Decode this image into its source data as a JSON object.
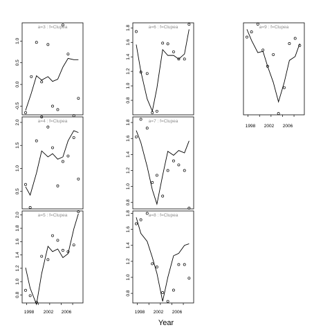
{
  "chart_data": {
    "type": "scatter",
    "xlabel": "Year",
    "x_ticks": [
      1998,
      2002,
      2006
    ],
    "panels": [
      {
        "title": "a=3 : f=Clupea",
        "x": [
          1998,
          1999,
          2000,
          2001,
          2002,
          2003,
          2004,
          2005,
          2006,
          2007
        ],
        "observed": [
          -0.65,
          0.18,
          0.97,
          0.06,
          0.92,
          -0.5,
          -0.58,
          1.37,
          0.7,
          -0.72,
          -0.32
        ],
        "observed_x": [
          1997.8,
          1998.8,
          1999.7,
          2000.6,
          2001.7,
          2002.5,
          2003.4,
          2004.3,
          2005.2,
          2006.2,
          2007.0
        ],
        "fitted": [
          -0.6,
          -0.2,
          0.2,
          0.1,
          0.18,
          0.07,
          0.12,
          0.4,
          0.6,
          0.57,
          0.57
        ],
        "fitted_x": [
          1997.8,
          1998.8,
          1999.7,
          2000.6,
          2001.7,
          2002.5,
          2003.4,
          2004.3,
          2005.2,
          2006.2,
          2007.0
        ],
        "ylim": [
          -0.7,
          1.42
        ],
        "yticks": [
          "-0.5",
          "0.0",
          "0.5",
          "1.0"
        ],
        "ytick_values": [
          -0.5,
          0.0,
          0.5,
          1.0
        ]
      },
      {
        "title": "a=4 : f=Clupea",
        "observed_x": [
          1997.8,
          1998.6,
          1999.7,
          2000.6,
          2001.7,
          2002.5,
          2003.4,
          2004.3,
          2005.2,
          2006.2,
          2007.0
        ],
        "observed": [
          0.65,
          0.15,
          1.6,
          2.12,
          1.9,
          1.45,
          0.62,
          1.15,
          1.27,
          1.67,
          0.77
        ],
        "fitted_x": [
          1997.8,
          1998.6,
          1999.7,
          2000.6,
          2001.7,
          2002.5,
          2003.4,
          2004.3,
          2005.2,
          2006.2,
          2007.0
        ],
        "fitted": [
          0.6,
          0.42,
          0.9,
          1.38,
          1.25,
          1.32,
          1.2,
          1.25,
          1.6,
          1.82,
          1.78
        ],
        "ylim": [
          0.12,
          2.12
        ],
        "yticks": [
          "0.5",
          "1.0",
          "1.5",
          "2.0"
        ],
        "ytick_values": [
          0.5,
          1.0,
          1.5,
          2.0
        ]
      },
      {
        "title": "a=5 : f=Clupea",
        "observed_x": [
          1997.8,
          1998.6,
          1999.7,
          2000.6,
          2001.7,
          2002.5,
          2003.4,
          2004.3,
          2005.2,
          2006.2,
          2007.0
        ],
        "observed": [
          0.87,
          0.79,
          0.69,
          1.38,
          1.33,
          1.69,
          1.62,
          1.47,
          1.45,
          1.55,
          2.05
        ],
        "fitted_x": [
          1997.8,
          1998.6,
          1999.7,
          2000.6,
          2001.7,
          2002.5,
          2003.4,
          2004.3,
          2005.2,
          2006.2,
          2007.0
        ],
        "fitted": [
          1.21,
          0.9,
          0.66,
          1.12,
          1.53,
          1.45,
          1.49,
          1.36,
          1.42,
          1.79,
          2.02
        ],
        "ylim": [
          0.68,
          2.06
        ],
        "yticks": [
          "0.8",
          "1.0",
          "1.2",
          "1.4",
          "1.6",
          "1.8",
          "2.0"
        ],
        "ytick_values": [
          0.8,
          1.0,
          1.2,
          1.4,
          1.6,
          1.8,
          2.0
        ]
      },
      {
        "title": "a=6 : f=Clupea",
        "observed_x": [
          1997.8,
          1998.6,
          1999.7,
          2000.6,
          2001.4,
          2002.4,
          2003.3,
          2004.3,
          2005.2,
          2006.2,
          2007.0
        ],
        "observed": [
          1.75,
          1.19,
          1.17,
          0.63,
          0.65,
          1.59,
          1.58,
          1.47,
          1.37,
          1.37,
          1.85
        ],
        "fitted_x": [
          1997.8,
          1998.6,
          1999.7,
          2000.6,
          2001.4,
          2002.4,
          2003.3,
          2004.3,
          2005.2,
          2006.2,
          2007.0
        ],
        "fitted": [
          1.57,
          1.2,
          0.82,
          0.65,
          0.97,
          1.5,
          1.42,
          1.42,
          1.37,
          1.44,
          1.78
        ],
        "ylim": [
          0.6,
          1.87
        ],
        "yticks": [
          "0.8",
          "1.0",
          "1.2",
          "1.4",
          "1.6",
          "1.8"
        ],
        "ytick_values": [
          0.8,
          1.0,
          1.2,
          1.4,
          1.6,
          1.8
        ]
      },
      {
        "title": "a=7 : f=Clupea",
        "observed_x": [
          1997.8,
          1998.6,
          1999.7,
          2000.6,
          2001.4,
          2002.4,
          2003.3,
          2004.3,
          2005.2,
          2006.2,
          2007.0
        ],
        "observed": [
          1.62,
          1.84,
          1.73,
          1.05,
          1.14,
          0.88,
          1.2,
          1.32,
          1.27,
          1.2,
          0.73
        ],
        "fitted_x": [
          1997.8,
          1998.6,
          1999.7,
          2000.6,
          2001.4,
          2002.4,
          2003.3,
          2004.3,
          2005.2,
          2006.2,
          2007.0
        ],
        "fitted": [
          1.7,
          1.55,
          1.25,
          0.96,
          0.78,
          1.14,
          1.44,
          1.39,
          1.45,
          1.42,
          1.57
        ],
        "ylim": [
          0.72,
          1.87
        ],
        "yticks": [
          "0.8",
          "1.0",
          "1.2",
          "1.4",
          "1.6",
          "1.8"
        ],
        "ytick_values": [
          0.8,
          1.0,
          1.2,
          1.4,
          1.6,
          1.8
        ]
      },
      {
        "title": "a=8 : f=Clupea",
        "observed_x": [
          1997.8,
          1998.6,
          1999.7,
          2000.6,
          2001.4,
          2002.4,
          2003.3,
          2004.3,
          2005.2,
          2006.2,
          2007.0
        ],
        "observed": [
          1.67,
          1.72,
          1.8,
          1.17,
          1.13,
          0.81,
          0.7,
          0.84,
          1.16,
          1.16,
          0.99
        ],
        "fitted_x": [
          1997.8,
          1998.6,
          1999.7,
          2000.6,
          2001.4,
          2002.4,
          2003.3,
          2004.3,
          2005.2,
          2006.2,
          2007.0
        ],
        "fitted": [
          1.75,
          1.55,
          1.45,
          1.25,
          1.05,
          0.7,
          1.0,
          1.27,
          1.3,
          1.4,
          1.42
        ],
        "ylim": [
          0.68,
          1.83
        ],
        "yticks": [
          "0.8",
          "1.0",
          "1.2",
          "1.4",
          "1.6",
          "1.8"
        ],
        "ytick_values": [
          0.8,
          1.0,
          1.2,
          1.4,
          1.6,
          1.8
        ]
      },
      {
        "title": "a=9 : f=Clupea",
        "observed_x": [
          1997.8,
          1998.6,
          1999.7,
          2000.6,
          2001.4,
          2002.4,
          2003.3,
          2004.3,
          2005.2,
          2006.2,
          2007.0
        ],
        "observed": [
          1.2,
          1.28,
          1.4,
          1.0,
          0.75,
          0.93,
          0.02,
          0.42,
          1.1,
          1.18,
          1.07
        ],
        "fitted_x": [
          1997.8,
          1998.6,
          1999.7,
          2000.6,
          2001.4,
          2002.4,
          2003.3,
          2004.3,
          2005.2,
          2006.2,
          2007.0
        ],
        "fitted": [
          1.32,
          1.15,
          0.96,
          0.98,
          0.75,
          0.5,
          0.2,
          0.5,
          0.84,
          0.9,
          1.1
        ],
        "ylim": [
          0.0,
          1.42
        ],
        "yticks": [],
        "ytick_values": []
      }
    ]
  }
}
